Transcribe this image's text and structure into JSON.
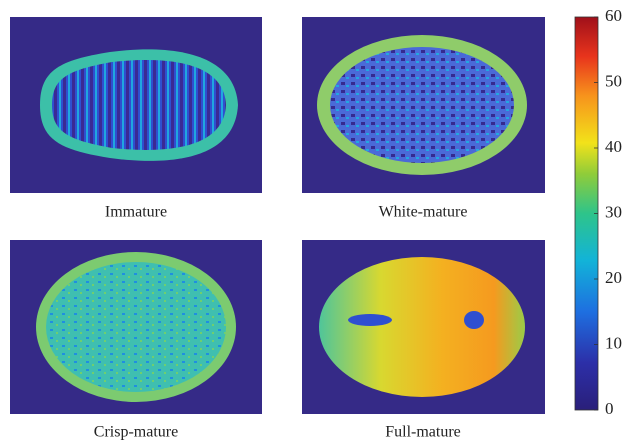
{
  "panels": [
    {
      "label": "Immature"
    },
    {
      "label": "White-mature"
    },
    {
      "label": "Crisp-mature"
    },
    {
      "label": "Full-mature"
    }
  ],
  "colorbar": {
    "lim": [
      0,
      60
    ],
    "ticks": [
      0,
      10,
      20,
      30,
      40,
      50,
      60
    ]
  }
}
